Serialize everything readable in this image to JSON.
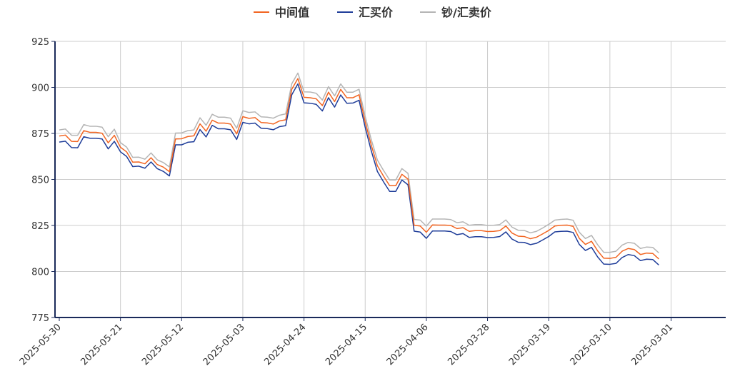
{
  "chart_data": {
    "type": "line",
    "title": "",
    "xlabel": "",
    "ylabel": "",
    "ylim": [
      775,
      925
    ],
    "yticks": [
      775,
      800,
      825,
      850,
      875,
      900,
      925
    ],
    "grid": true,
    "legend_position": "top-center",
    "x_tick_labels": [
      "2025-05-30",
      "2025-05-21",
      "2025-05-12",
      "2025-05-03",
      "2025-04-24",
      "2025-04-15",
      "2025-04-06",
      "2025-03-28",
      "2025-03-19",
      "2025-03-10",
      "2025-03-01"
    ],
    "series": [
      {
        "name": "中间值",
        "color": "#f26522",
        "values": [
          873.6,
          874.1,
          870.7,
          870.6,
          876.5,
          875.6,
          875.6,
          875.1,
          869.9,
          874.0,
          867.5,
          865.0,
          859.4,
          859.5,
          858.5,
          861.8,
          858.1,
          856.7,
          854.2,
          872.0,
          872.1,
          873.3,
          873.7,
          880.2,
          876.2,
          882.2,
          880.6,
          880.6,
          880.1,
          874.7,
          884.1,
          883.2,
          883.6,
          880.9,
          880.7,
          880.1,
          881.8,
          882.4,
          899.0,
          904.8,
          894.6,
          894.4,
          893.8,
          890.1,
          897.4,
          892.3,
          898.9,
          894.4,
          894.4,
          896.0,
          881.3,
          868.6,
          857.4,
          851.8,
          846.6,
          846.6,
          852.8,
          850.2,
          825.1,
          824.7,
          821.3,
          825.3,
          825.2,
          825.2,
          825.0,
          823.3,
          823.8,
          821.8,
          822.2,
          822.2,
          821.7,
          821.8,
          822.2,
          824.7,
          820.9,
          819.2,
          819.0,
          817.8,
          818.6,
          820.4,
          822.3,
          824.7,
          825.1,
          825.2,
          824.5,
          818.0,
          814.7,
          816.4,
          811.2,
          807.2,
          807.1,
          807.7,
          811.0,
          812.5,
          811.9,
          809.2,
          810.0,
          809.8,
          806.8
        ]
      },
      {
        "name": "汇买价",
        "color": "#1f3d99",
        "values": [
          870.3,
          870.8,
          867.3,
          867.2,
          873.2,
          872.4,
          872.4,
          872.0,
          866.6,
          870.7,
          865.0,
          862.5,
          857.0,
          857.2,
          856.1,
          859.5,
          855.9,
          854.4,
          851.9,
          868.8,
          868.8,
          870.2,
          870.5,
          877.1,
          873.1,
          879.4,
          877.5,
          877.5,
          877.0,
          871.7,
          881.0,
          880.2,
          880.6,
          877.8,
          877.6,
          877.0,
          878.7,
          879.2,
          896.0,
          901.9,
          891.6,
          891.4,
          890.8,
          887.2,
          894.4,
          889.3,
          895.9,
          891.4,
          891.5,
          893.0,
          878.3,
          865.5,
          854.3,
          848.7,
          843.5,
          843.5,
          849.7,
          847.1,
          821.9,
          821.4,
          818.0,
          822.0,
          822.0,
          822.0,
          821.7,
          820.0,
          820.6,
          818.5,
          818.9,
          818.9,
          818.4,
          818.5,
          819.0,
          821.5,
          817.6,
          815.9,
          815.8,
          814.6,
          815.3,
          817.1,
          819.0,
          821.5,
          821.8,
          821.9,
          821.2,
          814.7,
          811.4,
          813.1,
          807.9,
          804.0,
          803.9,
          804.4,
          807.6,
          809.2,
          808.6,
          805.9,
          806.7,
          806.5,
          803.5
        ]
      },
      {
        "name": "钞/汇卖价",
        "color": "#b5b5b5",
        "values": [
          876.9,
          877.4,
          874.0,
          874.0,
          879.8,
          878.9,
          878.9,
          878.4,
          873.2,
          877.3,
          870.0,
          867.6,
          862.0,
          862.1,
          861.0,
          864.4,
          860.7,
          859.2,
          856.8,
          875.2,
          875.3,
          876.5,
          876.9,
          883.5,
          879.4,
          885.4,
          883.8,
          883.8,
          883.3,
          877.8,
          887.3,
          886.4,
          886.7,
          884.0,
          883.8,
          883.3,
          884.9,
          885.6,
          902.0,
          907.8,
          897.6,
          897.5,
          896.8,
          893.1,
          900.4,
          895.4,
          901.9,
          897.4,
          897.4,
          899.0,
          884.3,
          871.6,
          860.5,
          854.9,
          849.7,
          849.7,
          855.9,
          853.3,
          828.3,
          827.9,
          824.6,
          828.5,
          828.5,
          828.5,
          828.2,
          826.5,
          827.0,
          825.1,
          825.5,
          825.5,
          825.0,
          825.1,
          825.5,
          828.0,
          824.1,
          822.4,
          822.3,
          821.0,
          821.8,
          823.6,
          825.6,
          827.9,
          828.3,
          828.5,
          827.8,
          821.3,
          817.9,
          819.6,
          814.5,
          810.4,
          810.4,
          811.0,
          814.3,
          815.8,
          815.3,
          812.5,
          813.3,
          813.1,
          810.1
        ]
      }
    ]
  }
}
